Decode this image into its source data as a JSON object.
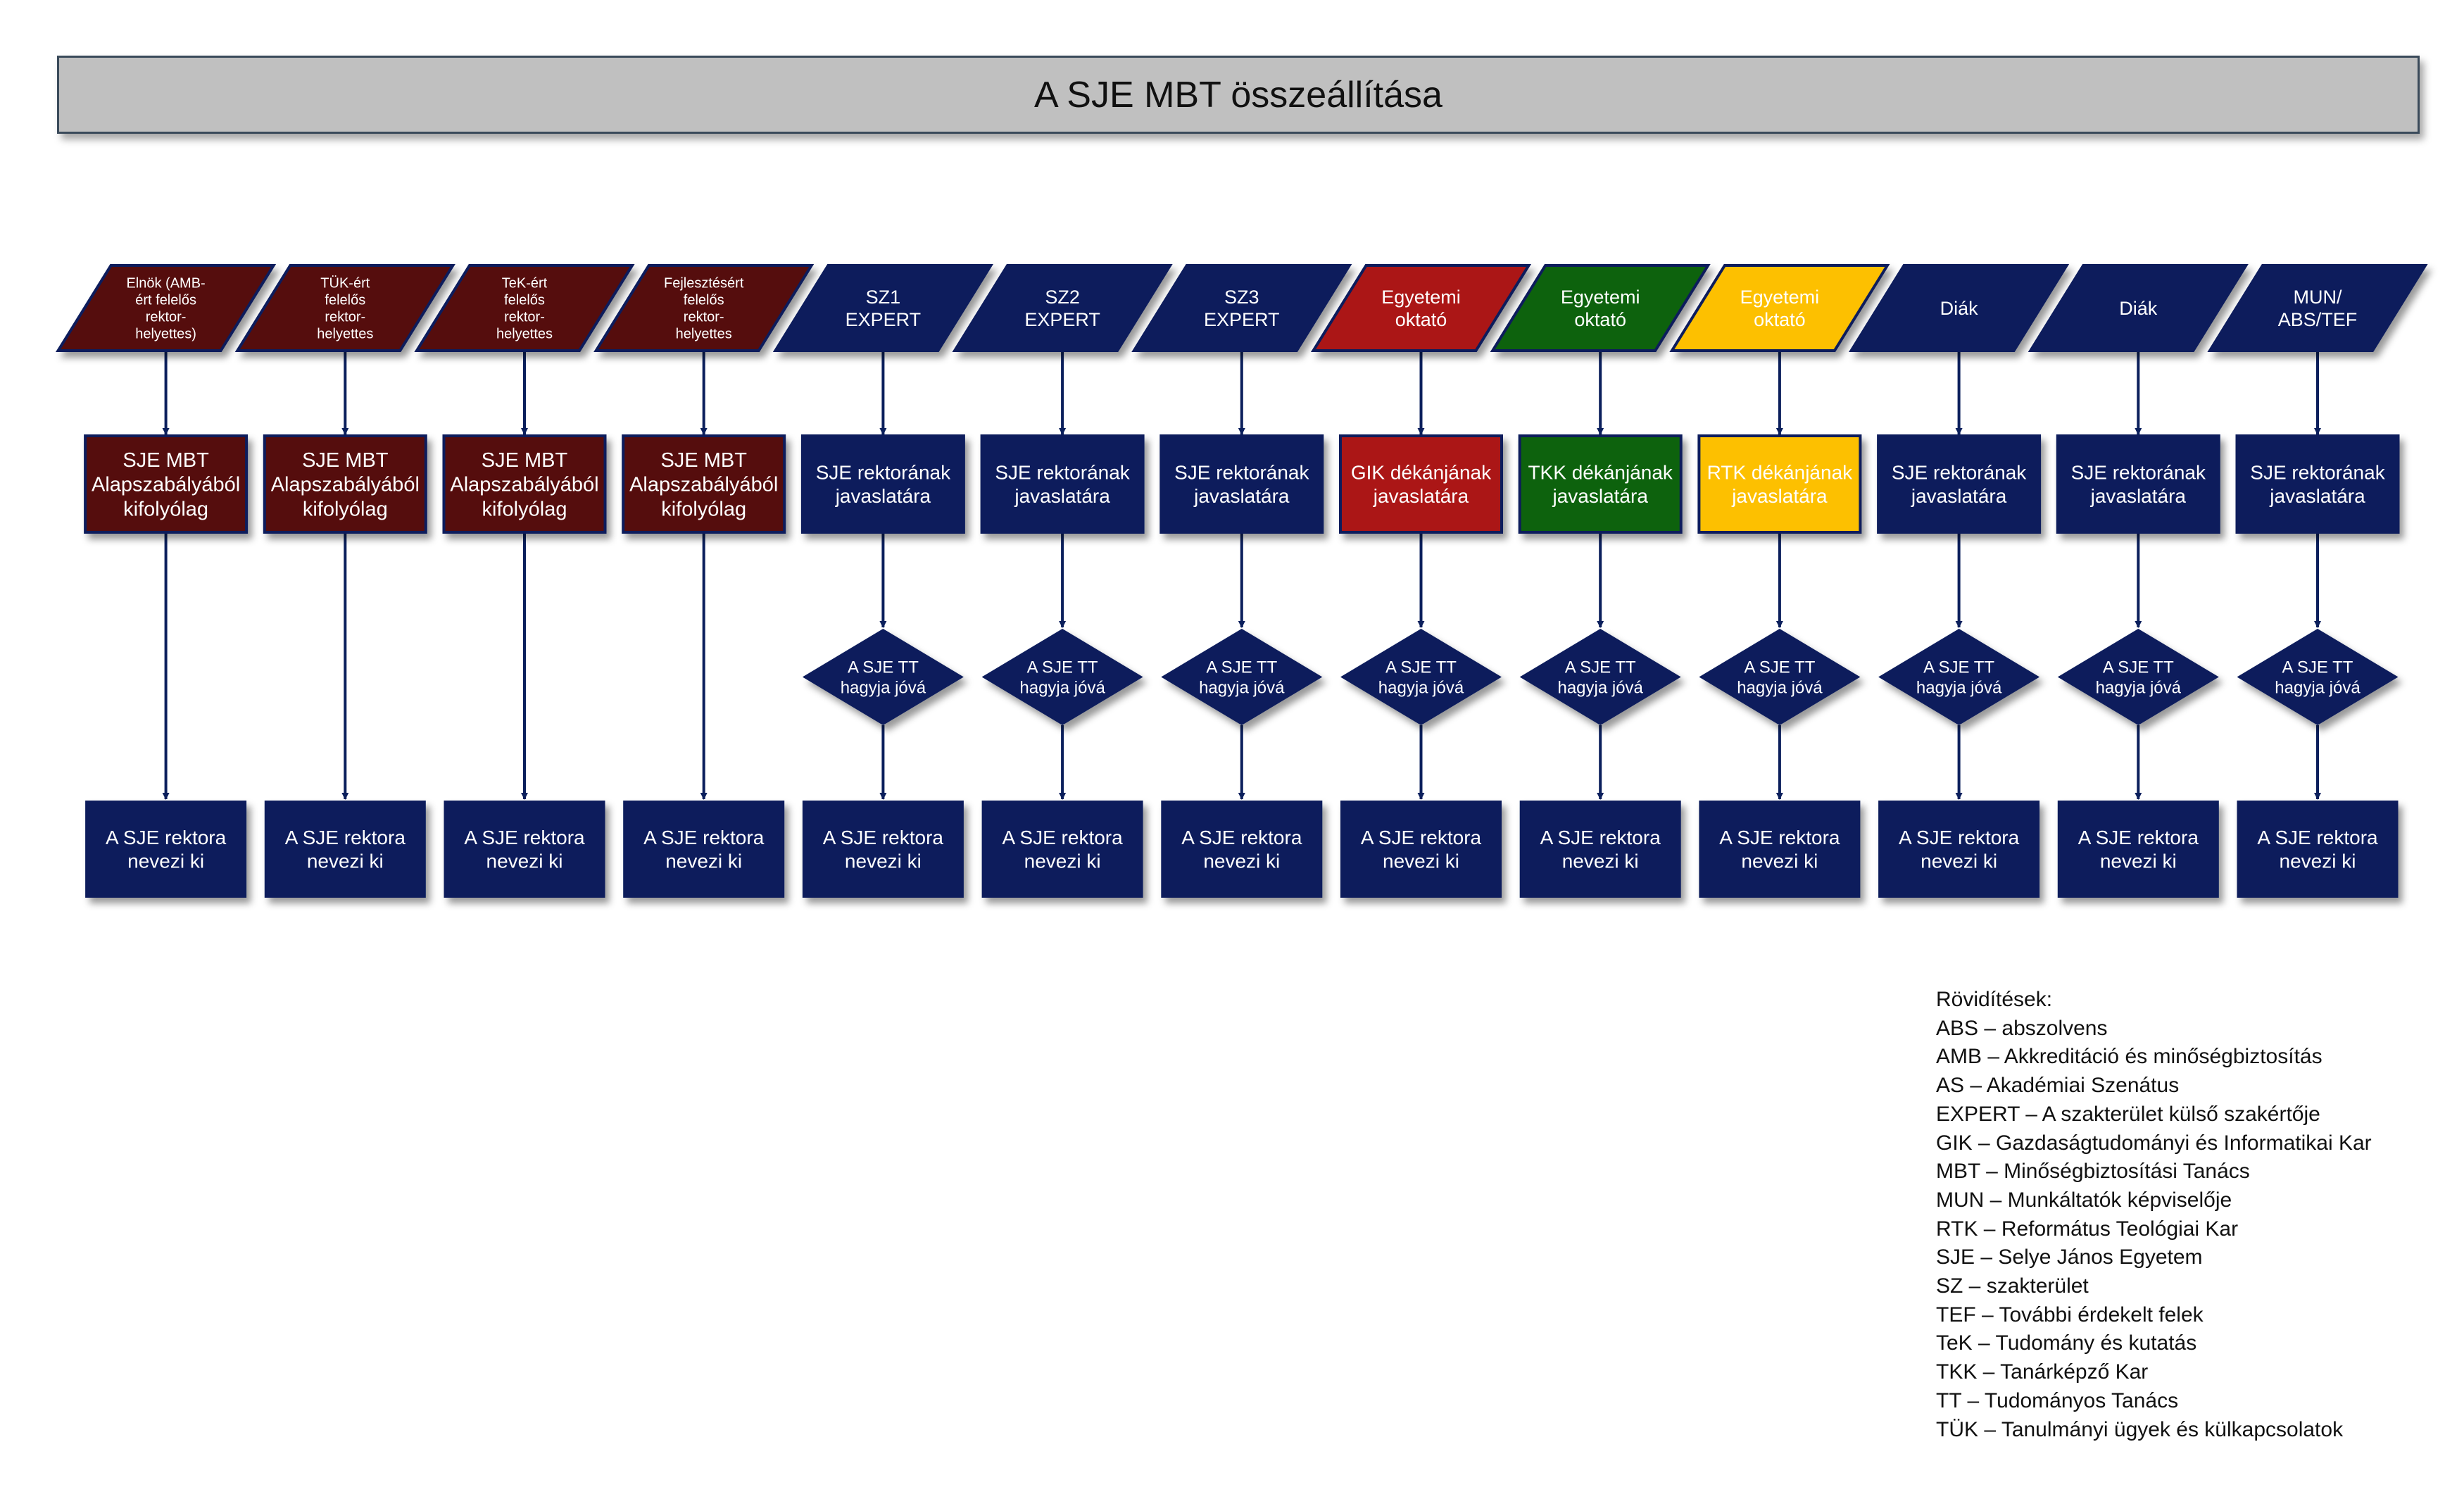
{
  "title": "A SJE MBT összeállítása",
  "colors": {
    "navy": "#0b1f5c",
    "maroon": "#550c0c",
    "red": "#ab1515",
    "green": "#0a620a",
    "yellow": "#fdc000",
    "title_bg": "#c0c0c0"
  },
  "columns": [
    {
      "top": [
        "Elnök (AMB-",
        "ért felelős",
        "rektor-",
        "helyettes)"
      ],
      "top_color": "maroon",
      "mid": [
        "SJE MBT",
        "Alapszabályából",
        "kifolyólag"
      ],
      "mid_color": "maroon",
      "diamond": null,
      "bottom": [
        "A SJE rektora",
        "nevezi ki"
      ]
    },
    {
      "top": [
        "TÜK-ért",
        "felelős",
        "rektor-",
        "helyettes"
      ],
      "top_color": "maroon",
      "mid": [
        "SJE MBT",
        "Alapszabályából",
        "kifolyólag"
      ],
      "mid_color": "maroon",
      "diamond": null,
      "bottom": [
        "A SJE rektora",
        "nevezi ki"
      ]
    },
    {
      "top": [
        "TeK-ért",
        "felelős",
        "rektor-",
        "helyettes"
      ],
      "top_color": "maroon",
      "mid": [
        "SJE MBT",
        "Alapszabályából",
        "kifolyólag"
      ],
      "mid_color": "maroon",
      "diamond": null,
      "bottom": [
        "A SJE rektora",
        "nevezi ki"
      ]
    },
    {
      "top": [
        "Fejlesztésért",
        "felelős",
        "rektor-",
        "helyettes"
      ],
      "top_color": "maroon",
      "mid": [
        "SJE MBT",
        "Alapszabályából",
        "kifolyólag"
      ],
      "mid_color": "maroon",
      "diamond": null,
      "bottom": [
        "A SJE rektora",
        "nevezi ki"
      ]
    },
    {
      "top": [
        "SZ1",
        "EXPERT"
      ],
      "top_color": "navy",
      "mid": [
        "SJE rektorának",
        "javaslatára"
      ],
      "mid_color": "navy",
      "diamond": [
        "A SJE TT",
        "hagyja jóvá"
      ],
      "bottom": [
        "A SJE rektora",
        "nevezi ki"
      ]
    },
    {
      "top": [
        "SZ2",
        "EXPERT"
      ],
      "top_color": "navy",
      "mid": [
        "SJE rektorának",
        "javaslatára"
      ],
      "mid_color": "navy",
      "diamond": [
        "A SJE TT",
        "hagyja jóvá"
      ],
      "bottom": [
        "A SJE rektora",
        "nevezi ki"
      ]
    },
    {
      "top": [
        "SZ3",
        "EXPERT"
      ],
      "top_color": "navy",
      "mid": [
        "SJE rektorának",
        "javaslatára"
      ],
      "mid_color": "navy",
      "diamond": [
        "A SJE TT",
        "hagyja jóvá"
      ],
      "bottom": [
        "A SJE rektora",
        "nevezi ki"
      ]
    },
    {
      "top": [
        "Egyetemi",
        "oktató"
      ],
      "top_color": "red",
      "mid": [
        "GIK dékánjának",
        "javaslatára"
      ],
      "mid_color": "red",
      "diamond": [
        "A SJE TT",
        "hagyja jóvá"
      ],
      "bottom": [
        "A SJE rektora",
        "nevezi ki"
      ]
    },
    {
      "top": [
        "Egyetemi",
        "oktató"
      ],
      "top_color": "green",
      "mid": [
        "TKK dékánjának",
        "javaslatára"
      ],
      "mid_color": "green",
      "diamond": [
        "A SJE TT",
        "hagyja jóvá"
      ],
      "bottom": [
        "A SJE rektora",
        "nevezi ki"
      ]
    },
    {
      "top": [
        "Egyetemi",
        "oktató"
      ],
      "top_color": "yellow",
      "mid": [
        "RTK dékánjának",
        "javaslatára"
      ],
      "mid_color": "yellow",
      "diamond": [
        "A SJE TT",
        "hagyja jóvá"
      ],
      "bottom": [
        "A SJE rektora",
        "nevezi ki"
      ]
    },
    {
      "top": [
        "Diák"
      ],
      "top_color": "navy",
      "mid": [
        "SJE rektorának",
        "javaslatára"
      ],
      "mid_color": "navy",
      "diamond": [
        "A SJE TT",
        "hagyja jóvá"
      ],
      "bottom": [
        "A SJE rektora",
        "nevezi ki"
      ]
    },
    {
      "top": [
        "Diák"
      ],
      "top_color": "navy",
      "mid": [
        "SJE rektorának",
        "javaslatára"
      ],
      "mid_color": "navy",
      "diamond": [
        "A SJE TT",
        "hagyja jóvá"
      ],
      "bottom": [
        "A SJE rektora",
        "nevezi ki"
      ]
    },
    {
      "top": [
        "MUN/",
        "ABS/TEF"
      ],
      "top_color": "navy",
      "mid": [
        "SJE rektorának",
        "javaslatára"
      ],
      "mid_color": "navy",
      "diamond": [
        "A SJE TT",
        "hagyja jóvá"
      ],
      "bottom": [
        "A SJE rektora",
        "nevezi ki"
      ]
    }
  ],
  "legend": {
    "heading": "Rövidítések:",
    "items": [
      "ABS – abszolvens",
      "AMB – Akkreditáció és minőségbiztosítás",
      "AS – Akadémiai Szenátus",
      "EXPERT – A szakterület külső szakértője",
      "GIK – Gazdaságtudományi és Informatikai Kar",
      "MBT – Minőségbiztosítási Tanács",
      "MUN – Munkáltatók képviselője",
      "RTK – Református Teológiai Kar",
      "SJE – Selye János Egyetem",
      "SZ – szakterület",
      "TEF – További érdekelt felek",
      "TeK – Tudomány és kutatás",
      "TKK – Tanárképző Kar",
      "TT – Tudományos Tanács",
      "TÜK – Tanulmányi ügyek és külkapcsolatok"
    ]
  }
}
